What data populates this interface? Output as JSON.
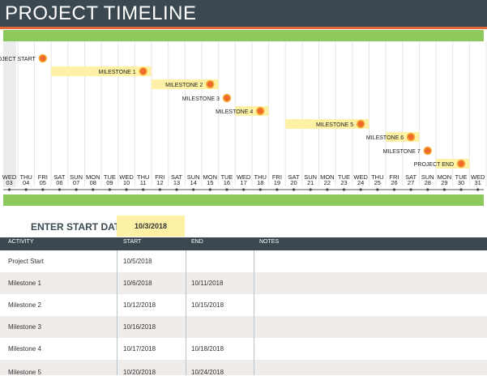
{
  "title": "PROJECT TIMELINE",
  "timeline": {
    "days": [
      {
        "dow": "WED",
        "d": "03"
      },
      {
        "dow": "THU",
        "d": "04"
      },
      {
        "dow": "FRI",
        "d": "05"
      },
      {
        "dow": "SAT",
        "d": "06"
      },
      {
        "dow": "SUN",
        "d": "07"
      },
      {
        "dow": "MON",
        "d": "08"
      },
      {
        "dow": "TUE",
        "d": "09"
      },
      {
        "dow": "WED",
        "d": "10"
      },
      {
        "dow": "THU",
        "d": "11"
      },
      {
        "dow": "FRI",
        "d": "12"
      },
      {
        "dow": "SAT",
        "d": "13"
      },
      {
        "dow": "SUN",
        "d": "14"
      },
      {
        "dow": "MON",
        "d": "15"
      },
      {
        "dow": "TUE",
        "d": "16"
      },
      {
        "dow": "WED",
        "d": "17"
      },
      {
        "dow": "THU",
        "d": "18"
      },
      {
        "dow": "FRI",
        "d": "19"
      },
      {
        "dow": "SAT",
        "d": "20"
      },
      {
        "dow": "SUN",
        "d": "21"
      },
      {
        "dow": "MON",
        "d": "22"
      },
      {
        "dow": "TUE",
        "d": "23"
      },
      {
        "dow": "WED",
        "d": "24"
      },
      {
        "dow": "THU",
        "d": "25"
      },
      {
        "dow": "FRI",
        "d": "26"
      },
      {
        "dow": "SAT",
        "d": "27"
      },
      {
        "dow": "SUN",
        "d": "28"
      },
      {
        "dow": "MON",
        "d": "29"
      },
      {
        "dow": "TUE",
        "d": "30"
      },
      {
        "dow": "WED",
        "d": "31"
      }
    ],
    "items": [
      {
        "label": "PROJECT START",
        "start_day": 5,
        "end_day": 5
      },
      {
        "label": "MILESTONE 1",
        "start_day": 6,
        "end_day": 11
      },
      {
        "label": "MILESTONE 2",
        "start_day": 12,
        "end_day": 15
      },
      {
        "label": "MILESTONE 3",
        "start_day": 16,
        "end_day": 16
      },
      {
        "label": "MILESTONE 4",
        "start_day": 17,
        "end_day": 18
      },
      {
        "label": "MILESTONE 5",
        "start_day": 20,
        "end_day": 24
      },
      {
        "label": "MILESTONE 6",
        "start_day": 26,
        "end_day": 27
      },
      {
        "label": "MILESTONE 7",
        "start_day": 28,
        "end_day": 28
      },
      {
        "label": "PROJECT END",
        "start_day": 29,
        "end_day": 30
      }
    ],
    "colors": {
      "header": "#3b4850",
      "accent": "#e2683c",
      "band": "#8cc85c",
      "bar": "#fdf1a5",
      "dot": "#ee6b2b",
      "dot_ring": "#f6b13b"
    }
  },
  "start_date": {
    "label": "ENTER START DATE:",
    "value": "10/3/2018"
  },
  "table": {
    "headers": [
      "ACTIVITY",
      "START",
      "END",
      "NOTES"
    ],
    "rows": [
      {
        "activity": "Project Start",
        "start": "10/5/2018",
        "end": "",
        "notes": ""
      },
      {
        "activity": "Milestone 1",
        "start": "10/6/2018",
        "end": "10/11/2018",
        "notes": ""
      },
      {
        "activity": "Milestone 2",
        "start": "10/12/2018",
        "end": "10/15/2018",
        "notes": ""
      },
      {
        "activity": "Milestone 3",
        "start": "10/16/2018",
        "end": "",
        "notes": ""
      },
      {
        "activity": "Milestone 4",
        "start": "10/17/2018",
        "end": "10/18/2018",
        "notes": ""
      },
      {
        "activity": "Milestone 5",
        "start": "10/20/2018",
        "end": "10/24/2018",
        "notes": ""
      }
    ]
  }
}
